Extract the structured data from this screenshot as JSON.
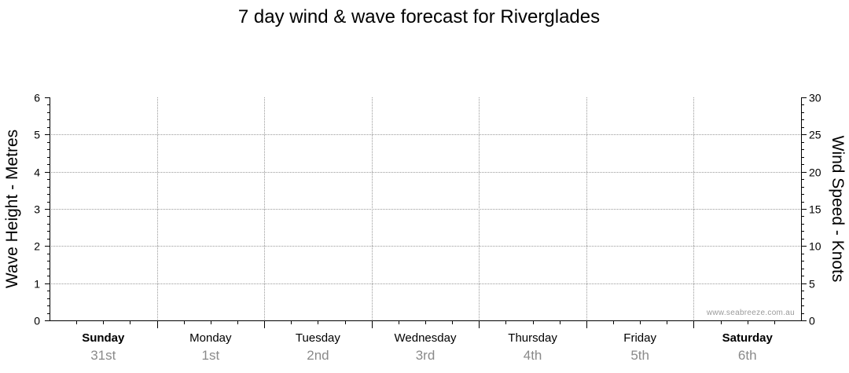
{
  "chart_data": {
    "type": "line",
    "title": "7 day wind & wave forecast for Riverglades",
    "y_left": {
      "label": "Wave Height - Metres",
      "range": [
        0,
        6
      ],
      "ticks": [
        0,
        1,
        2,
        3,
        4,
        5,
        6
      ]
    },
    "y_right": {
      "label": "Wind Speed - Knots",
      "range": [
        0,
        30
      ],
      "ticks": [
        0,
        5,
        10,
        15,
        20,
        25,
        30
      ]
    },
    "days": [
      {
        "name": "Sunday",
        "date": "31st",
        "weekend": true
      },
      {
        "name": "Monday",
        "date": "1st",
        "weekend": false
      },
      {
        "name": "Tuesday",
        "date": "2nd",
        "weekend": false
      },
      {
        "name": "Wednesday",
        "date": "3rd",
        "weekend": false
      },
      {
        "name": "Thursday",
        "date": "4th",
        "weekend": false
      },
      {
        "name": "Friday",
        "date": "5th",
        "weekend": false
      },
      {
        "name": "Saturday",
        "date": "6th",
        "weekend": true
      }
    ],
    "grid": true,
    "series": []
  },
  "watermark": "www.seabreeze.com.au"
}
